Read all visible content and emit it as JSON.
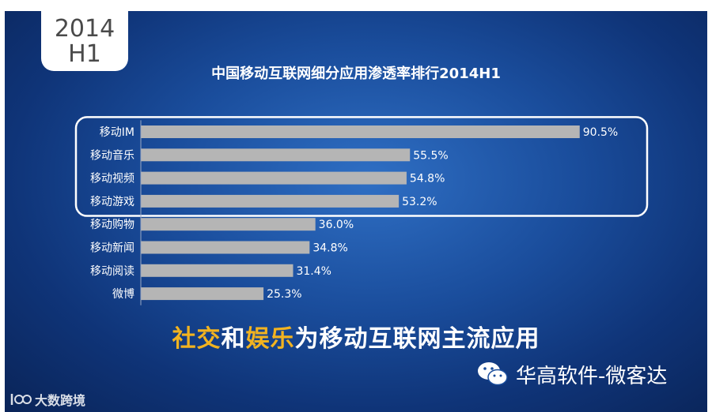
{
  "badge": {
    "line1": "2014",
    "line2": "H1"
  },
  "chart_data": {
    "type": "bar",
    "orientation": "horizontal",
    "title": "中国移动互联网细分应用渗透率排行2014H1",
    "categories": [
      "移动IM",
      "移动音乐",
      "移动视频",
      "移动游戏",
      "移动购物",
      "移动新闻",
      "移动阅读",
      "微博"
    ],
    "values": [
      90.5,
      55.5,
      54.8,
      53.2,
      36.0,
      34.8,
      31.4,
      25.3
    ],
    "value_labels": [
      "90.5%",
      "55.5%",
      "54.8%",
      "53.2%",
      "36.0%",
      "34.8%",
      "31.4%",
      "25.3%"
    ],
    "xlim": [
      0,
      100
    ],
    "highlighted_categories": [
      "移动IM",
      "移动音乐",
      "移动视频",
      "移动游戏"
    ],
    "bar_color": "#b5b5b5",
    "grid": false
  },
  "tagline": {
    "part1": "社交",
    "part2": "和",
    "part3": "娱乐",
    "part4": "为移动互联网主流应用"
  },
  "colors": {
    "highlight": "#f2b320",
    "background": "#1a4d9c"
  },
  "wechat": {
    "icon": "wechat-icon",
    "text": "华高软件-微客达"
  },
  "logo": {
    "icon": "logo-icon",
    "text": "大数跨境"
  }
}
